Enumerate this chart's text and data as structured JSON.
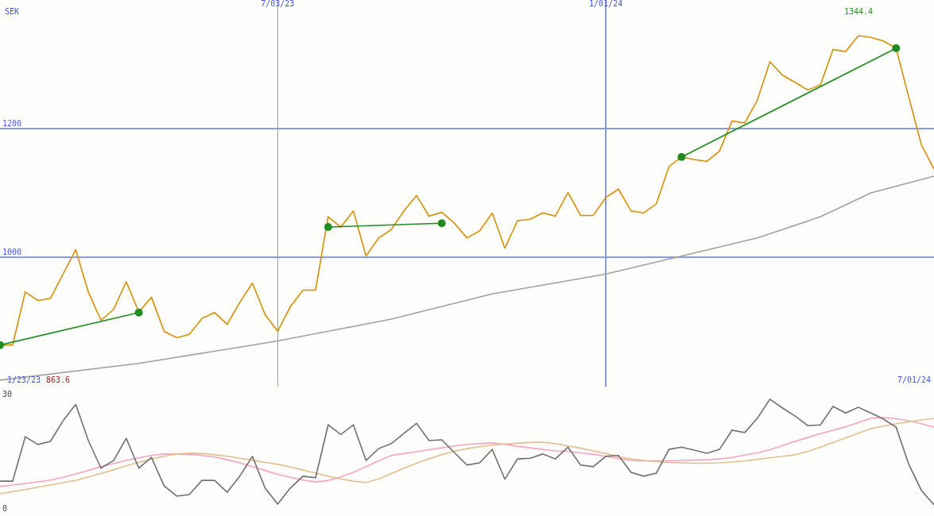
{
  "chart_data": [
    {
      "type": "line",
      "x": [
        "2023-01-30",
        "2023-02-06",
        "2023-02-13",
        "2023-02-20",
        "2023-02-27",
        "2023-03-06",
        "2023-03-13",
        "2023-03-20",
        "2023-03-27",
        "2023-04-03",
        "2023-04-10",
        "2023-04-17",
        "2023-04-24",
        "2023-05-01",
        "2023-05-08",
        "2023-05-15",
        "2023-05-22",
        "2023-05-29",
        "2023-06-05",
        "2023-06-12",
        "2023-06-19",
        "2023-06-26",
        "2023-07-03",
        "2023-07-10",
        "2023-07-17",
        "2023-07-24",
        "2023-07-31",
        "2023-08-07",
        "2023-08-14",
        "2023-08-21",
        "2023-08-28",
        "2023-09-04",
        "2023-09-11",
        "2023-09-18",
        "2023-09-25",
        "2023-10-02",
        "2023-10-09",
        "2023-10-16",
        "2023-10-23",
        "2023-10-30",
        "2023-11-06",
        "2023-11-13",
        "2023-11-20",
        "2023-11-27",
        "2023-12-04",
        "2023-12-11",
        "2023-12-18",
        "2023-12-25",
        "2024-01-01",
        "2024-01-08",
        "2024-01-15",
        "2024-01-22",
        "2024-01-29",
        "2024-02-05",
        "2024-02-12",
        "2024-02-19",
        "2024-02-26",
        "2024-03-04",
        "2024-03-11",
        "2024-03-18",
        "2024-03-25",
        "2024-04-01",
        "2024-04-08",
        "2024-04-15",
        "2024-04-22",
        "2024-04-29",
        "2024-05-06",
        "2024-05-13",
        "2024-05-20",
        "2024-05-27",
        "2024-06-03",
        "2024-06-10",
        "2024-06-17",
        "2024-06-24",
        "2024-07-01"
      ],
      "series": [
        {
          "color": "#d4900a",
          "values": [
            863.6,
            863.6,
            946,
            933,
            936,
            974,
            1012,
            946,
            902,
            919,
            962,
            915,
            938,
            885,
            875,
            880,
            905,
            914,
            896,
            930,
            960,
            911,
            885,
            923,
            949,
            949,
            1063,
            1047,
            1072,
            1002,
            1030,
            1043,
            1072,
            1096,
            1064,
            1070,
            1053,
            1030,
            1041,
            1069,
            1014,
            1057,
            1059,
            1069,
            1064,
            1101,
            1065,
            1065,
            1093,
            1106,
            1072,
            1069,
            1083,
            1141,
            1156,
            1152,
            1149,
            1165,
            1212,
            1209,
            1244,
            1304,
            1283,
            1272,
            1260,
            1268,
            1323,
            1320,
            1344.4,
            1342,
            1336,
            1325,
            1249,
            1175,
            1137
          ]
        },
        {
          "color": "#a0a0a0",
          "x": [
            "2023-01-30",
            "2023-04-17",
            "2023-07-03",
            "2023-09-04",
            "2023-10-30",
            "2024-01-01",
            "2024-02-12",
            "2024-03-25",
            "2024-04-29",
            "2024-05-27",
            "2024-07-01"
          ],
          "values": [
            809,
            835,
            870,
            904,
            943,
            974,
            1002,
            1030,
            1063,
            1100,
            1126
          ]
        },
        {
          "color": "#228b22",
          "marker": "circle",
          "x": [
            "2023-01-30",
            "2023-04-17"
          ],
          "values": [
            863.6,
            914
          ]
        },
        {
          "color": "#228b22",
          "marker": "circle",
          "x": [
            "2023-07-31",
            "2023-10-02"
          ],
          "values": [
            1047,
            1053
          ]
        },
        {
          "color": "#228b22",
          "marker": "circle",
          "x": [
            "2024-02-12",
            "2024-06-10"
          ],
          "values": [
            1156,
            1325
          ]
        }
      ],
      "xlim": [
        "2023-01-30",
        "2024-07-01"
      ],
      "xticks": [
        {
          "value": "2023-07-03",
          "label": "7/03/23"
        },
        {
          "value": "2024-01-01",
          "label": "1/01/24"
        }
      ],
      "ylim": [
        799,
        1400
      ],
      "yticks": [
        1000,
        1200
      ],
      "grid": true,
      "marker": "none",
      "line_style": "solid",
      "annotations": [
        "SEK",
        "1/23/23",
        "863.6",
        "1344.4",
        "7/01/24"
      ]
    },
    {
      "type": "line",
      "categories": [
        null,
        null,
        null,
        null,
        null,
        null,
        null,
        null,
        null,
        null,
        null,
        null,
        null,
        null,
        null,
        null,
        null,
        null,
        null,
        null,
        null,
        null,
        null,
        null,
        null,
        null,
        null,
        null,
        null,
        null,
        null,
        null,
        null,
        null,
        null,
        null,
        null,
        null,
        null,
        null,
        null,
        null,
        null,
        null,
        null,
        null,
        null,
        null,
        null,
        null,
        null,
        null,
        null,
        null,
        null,
        null,
        null,
        null,
        null,
        null,
        null,
        null,
        null,
        null,
        null,
        null,
        null,
        null,
        null,
        null,
        null,
        null,
        null,
        null,
        null
      ],
      "series": [
        {
          "color": "#f4a6c0",
          "values": [
            5.8,
            6.2,
            6.6,
            7.0,
            7.5,
            8.2,
            9.1,
            10,
            11,
            11.8,
            12.6,
            13.3,
            13.9,
            14.3,
            14.3,
            14.2,
            13.9,
            13.5,
            12.8,
            12,
            11,
            10,
            9,
            8.2,
            7.5,
            7,
            7.4,
            8.3,
            9.5,
            11,
            12.5,
            13.9,
            14.4,
            14.9,
            15.4,
            15.9,
            16.4,
            16.8,
            17,
            17.2,
            16.8,
            16.3,
            15.9,
            15.5,
            15.1,
            15,
            14.6,
            14.2,
            13.7,
            13.1,
            12.6,
            12.5,
            12.5,
            12.5,
            12.6,
            12.7,
            12.8,
            13,
            13.4,
            14,
            14.6,
            15.4,
            16.5,
            17.6,
            18.6,
            19.6,
            20.5,
            21.4,
            22.5,
            23.6,
            23.8,
            23.5,
            23,
            22.2,
            21.3
          ]
        },
        {
          "color": "#e0c090",
          "values": [
            3.9,
            4.5,
            5,
            5.6,
            6.2,
            6.8,
            7.4,
            8.3,
            9.2,
            10.2,
            11.2,
            12.1,
            13,
            13.7,
            14.3,
            14.5,
            14.4,
            14.1,
            13.7,
            13.2,
            12.7,
            12.1,
            11.6,
            10.9,
            10.1,
            9.3,
            8.5,
            7.8,
            7.2,
            6.8,
            7.8,
            9.2,
            10.6,
            11.9,
            13.1,
            14.1,
            15,
            15.7,
            16.2,
            16.6,
            16.9,
            17.1,
            17.3,
            17.4,
            17,
            16.4,
            15.8,
            15.1,
            14.4,
            13.6,
            13,
            12.6,
            12.3,
            12.1,
            12,
            11.9,
            11.9,
            12,
            12.2,
            12.5,
            12.9,
            13.3,
            13.7,
            14.1,
            15,
            16.1,
            17.3,
            18.5,
            19.7,
            20.9,
            21.6,
            22.2,
            22.7,
            23.2,
            23.6
          ]
        },
        {
          "color": "#707070",
          "values": [
            7.2,
            7.2,
            18.8,
            16.8,
            17.6,
            23,
            27.3,
            17.8,
            10.6,
            12.6,
            18.4,
            10.6,
            13.4,
            6,
            3.3,
            3.7,
            7.4,
            7.4,
            4.3,
            8.5,
            13.7,
            5.4,
            1.2,
            5.4,
            8.5,
            8.1,
            21.9,
            19.4,
            21.9,
            12.6,
            15.7,
            17,
            19.7,
            22.3,
            17.8,
            18,
            14.7,
            11.4,
            12,
            15.5,
            7.7,
            13,
            13.2,
            14.3,
            13,
            16.1,
            11.4,
            11,
            13.7,
            13.9,
            9.5,
            8.5,
            9.3,
            15.5,
            16.1,
            15.3,
            14.5,
            15.5,
            20.5,
            19.9,
            23.6,
            28.6,
            26.3,
            24.2,
            21.7,
            21.9,
            26.7,
            25,
            26.5,
            25,
            23.4,
            21.3,
            11.6,
            4.8,
            1
          ]
        }
      ],
      "ylim": [
        -1.9,
        31.9
      ],
      "yticks": [
        0,
        30
      ],
      "marker": "none",
      "line_style": "solid",
      "tick_labels": "y"
    }
  ]
}
